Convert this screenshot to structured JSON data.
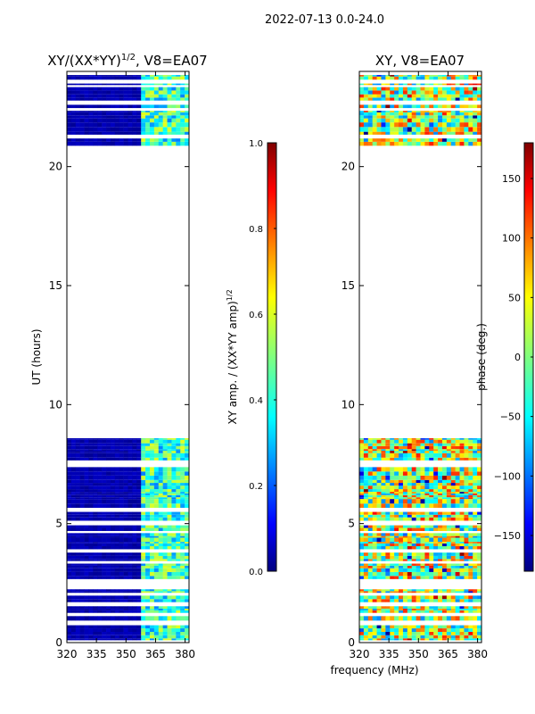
{
  "figure": {
    "suptitle": "2022-07-13 0.0-24.0",
    "xlabel": "frequency (MHz)",
    "colormap_stops": [
      "#00007f",
      "#0000ff",
      "#007fff",
      "#00ffff",
      "#7fff7f",
      "#ffff00",
      "#ff7f00",
      "#ff0000",
      "#7f0000"
    ]
  },
  "chart_data": [
    {
      "type": "heatmap",
      "title": "XY/(XX*YY)",
      "title_superscript": "1/2",
      "title_suffix": ", V8=EA07",
      "xlabel": "frequency (MHz)",
      "ylabel": "UT (hours)",
      "xlim": [
        320,
        382
      ],
      "ylim": [
        0,
        24
      ],
      "xticks": [
        320,
        335,
        350,
        365,
        380
      ],
      "yticks": [
        0,
        5,
        10,
        15,
        20
      ],
      "data_present_ut_ranges": [
        [
          0,
          8.75
        ],
        [
          20.8,
          24
        ]
      ],
      "colorbar": {
        "label": "XY amp. / (XX*YY amp)",
        "label_superscript": "1/2",
        "range": [
          0.0,
          1.0
        ],
        "ticks": [
          0.0,
          0.2,
          0.4,
          0.6,
          0.8,
          1.0
        ],
        "tick_labels": [
          "0.0",
          "0.2",
          "0.4",
          "0.6",
          "0.8",
          "1.0"
        ]
      }
    },
    {
      "type": "heatmap",
      "title": "XY, V8=EA07",
      "xlabel": "frequency (MHz)",
      "ylabel": "",
      "xlim": [
        320,
        382
      ],
      "ylim": [
        0,
        24
      ],
      "xticks": [
        320,
        335,
        350,
        365,
        380
      ],
      "yticks": [
        0,
        5,
        10,
        15,
        20
      ],
      "data_present_ut_ranges": [
        [
          0,
          8.75
        ],
        [
          20.8,
          24
        ]
      ],
      "colorbar": {
        "label": "phase (deg.)",
        "range": [
          -180,
          180
        ],
        "ticks": [
          -150,
          -100,
          -50,
          0,
          50,
          100,
          150
        ],
        "tick_labels": [
          "−150",
          "−100",
          "−50",
          "0",
          "50",
          "100",
          "150"
        ]
      }
    }
  ]
}
